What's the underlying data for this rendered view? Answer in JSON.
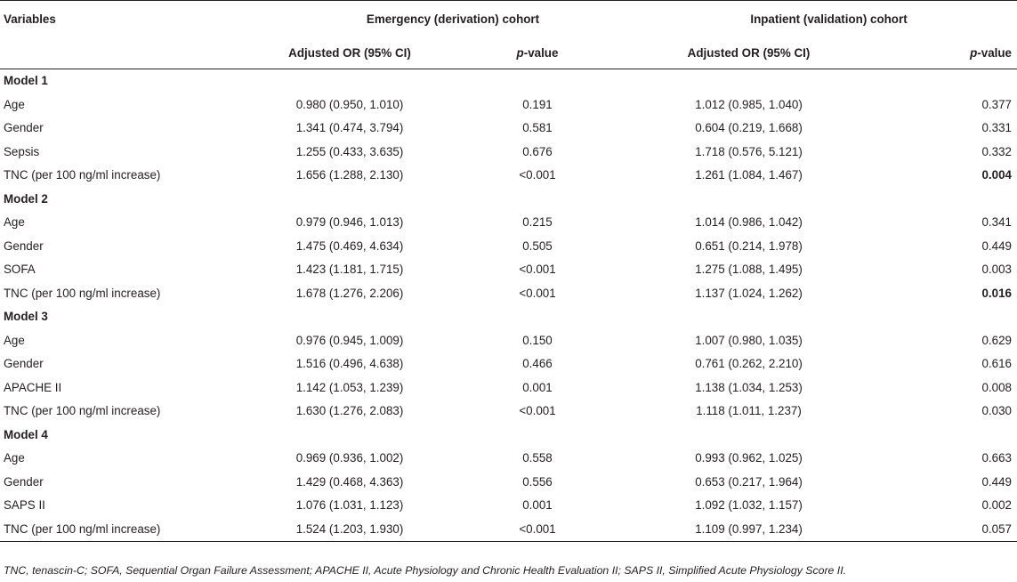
{
  "header": {
    "variables_label": "Variables",
    "group1_title": "Emergency (derivation) cohort",
    "group2_title": "Inpatient (validation) cohort",
    "or_label": "Adjusted OR (95% CI)",
    "p_label_italic": "p",
    "p_label_rest": "-value"
  },
  "models": [
    {
      "title": "Model 1",
      "rows": [
        {
          "variable": "Age",
          "or1": "0.980 (0.950, 1.010)",
          "p1": "0.191",
          "or2": "1.012 (0.985, 1.040)",
          "p2": "0.377",
          "p2_bold": false
        },
        {
          "variable": "Gender",
          "or1": "1.341 (0.474, 3.794)",
          "p1": "0.581",
          "or2": "0.604 (0.219, 1.668)",
          "p2": "0.331",
          "p2_bold": false
        },
        {
          "variable": "Sepsis",
          "or1": "1.255 (0.433, 3.635)",
          "p1": "0.676",
          "or2": "1.718 (0.576, 5.121)",
          "p2": "0.332",
          "p2_bold": false
        },
        {
          "variable": "TNC (per 100 ng/ml increase)",
          "or1": "1.656 (1.288, 2.130)",
          "p1": "<0.001",
          "or2": "1.261 (1.084, 1.467)",
          "p2": "0.004",
          "p2_bold": true
        }
      ]
    },
    {
      "title": "Model 2",
      "rows": [
        {
          "variable": "Age",
          "or1": "0.979 (0.946, 1.013)",
          "p1": "0.215",
          "or2": "1.014 (0.986, 1.042)",
          "p2": "0.341",
          "p2_bold": false
        },
        {
          "variable": "Gender",
          "or1": "1.475 (0.469, 4.634)",
          "p1": "0.505",
          "or2": "0.651 (0.214, 1.978)",
          "p2": "0.449",
          "p2_bold": false
        },
        {
          "variable": "SOFA",
          "or1": "1.423 (1.181, 1.715)",
          "p1": "<0.001",
          "or2": "1.275 (1.088, 1.495)",
          "p2": "0.003",
          "p2_bold": false
        },
        {
          "variable": "TNC (per 100 ng/ml increase)",
          "or1": "1.678 (1.276, 2.206)",
          "p1": "<0.001",
          "or2": "1.137 (1.024, 1.262)",
          "p2": "0.016",
          "p2_bold": true
        }
      ]
    },
    {
      "title": "Model 3",
      "rows": [
        {
          "variable": "Age",
          "or1": "0.976 (0.945, 1.009)",
          "p1": "0.150",
          "or2": "1.007 (0.980, 1.035)",
          "p2": "0.629",
          "p2_bold": false
        },
        {
          "variable": "Gender",
          "or1": "1.516 (0.496, 4.638)",
          "p1": "0.466",
          "or2": "0.761 (0.262, 2.210)",
          "p2": "0.616",
          "p2_bold": false
        },
        {
          "variable": "APACHE II",
          "or1": "1.142 (1.053, 1.239)",
          "p1": "0.001",
          "or2": "1.138 (1.034, 1.253)",
          "p2": "0.008",
          "p2_bold": false
        },
        {
          "variable": "TNC (per 100 ng/ml increase)",
          "or1": "1.630 (1.276, 2.083)",
          "p1": "<0.001",
          "or2": "1.118 (1.011, 1.237)",
          "p2": "0.030",
          "p2_bold": false
        }
      ]
    },
    {
      "title": "Model 4",
      "rows": [
        {
          "variable": "Age",
          "or1": "0.969 (0.936, 1.002)",
          "p1": "0.558",
          "or2": "0.993 (0.962, 1.025)",
          "p2": "0.663",
          "p2_bold": false
        },
        {
          "variable": "Gender",
          "or1": "1.429 (0.468, 4.363)",
          "p1": "0.556",
          "or2": "0.653 (0.217, 1.964)",
          "p2": "0.449",
          "p2_bold": false
        },
        {
          "variable": "SAPS II",
          "or1": "1.076 (1.031, 1.123)",
          "p1": "0.001",
          "or2": "1.092 (1.032, 1.157)",
          "p2": "0.002",
          "p2_bold": false
        },
        {
          "variable": "TNC (per 100 ng/ml increase)",
          "or1": "1.524 (1.203, 1.930)",
          "p1": "<0.001",
          "or2": "1.109 (0.997, 1.234)",
          "p2": "0.057",
          "p2_bold": false
        }
      ]
    }
  ],
  "footnote": "TNC, tenascin-C; SOFA, Sequential Organ Failure Assessment; APACHE II, Acute Physiology and Chronic Health Evaluation II; SAPS II, Simplified Acute Physiology Score II."
}
